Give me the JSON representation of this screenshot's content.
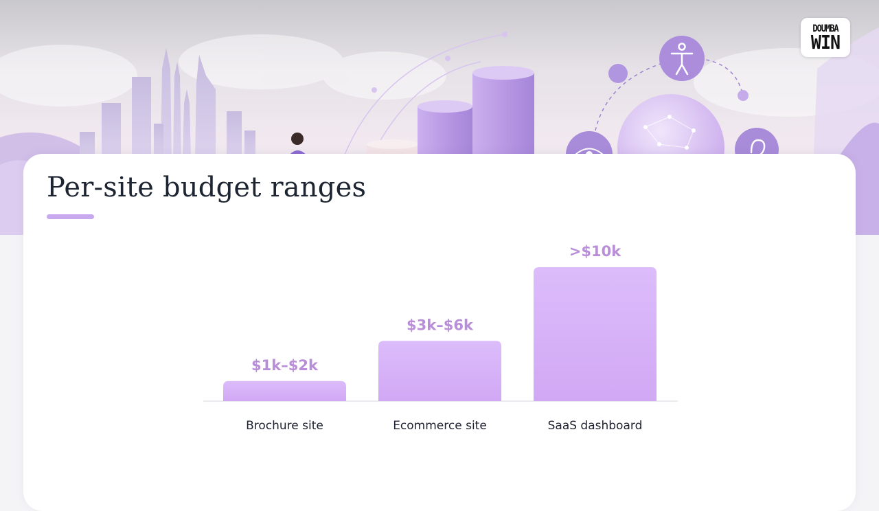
{
  "page": {
    "title": "Per-site budget ranges"
  },
  "brand": {
    "logo_line1": "DOUMBA",
    "logo_line2": "WIN"
  },
  "chart_data": {
    "type": "bar",
    "title": "",
    "xlabel": "",
    "ylabel": "",
    "categories": [
      "Brochure site",
      "Ecommerce site",
      "SaaS dashboard"
    ],
    "data_labels": [
      "$1k–$2k",
      "$3k–$6k",
      ">$10k"
    ],
    "values": [
      1.5,
      4.5,
      10
    ],
    "units": "thousand USD",
    "grid": false,
    "legend": "none",
    "colors": {
      "bar_top": "#dcbcfb",
      "bar_bottom": "#d1a8f4",
      "label": "#b88ed8",
      "baseline": "#eeeaf2"
    }
  },
  "icons": [
    "accessibility-icon",
    "eye-icon",
    "ear-icon",
    "network-globe-icon"
  ]
}
